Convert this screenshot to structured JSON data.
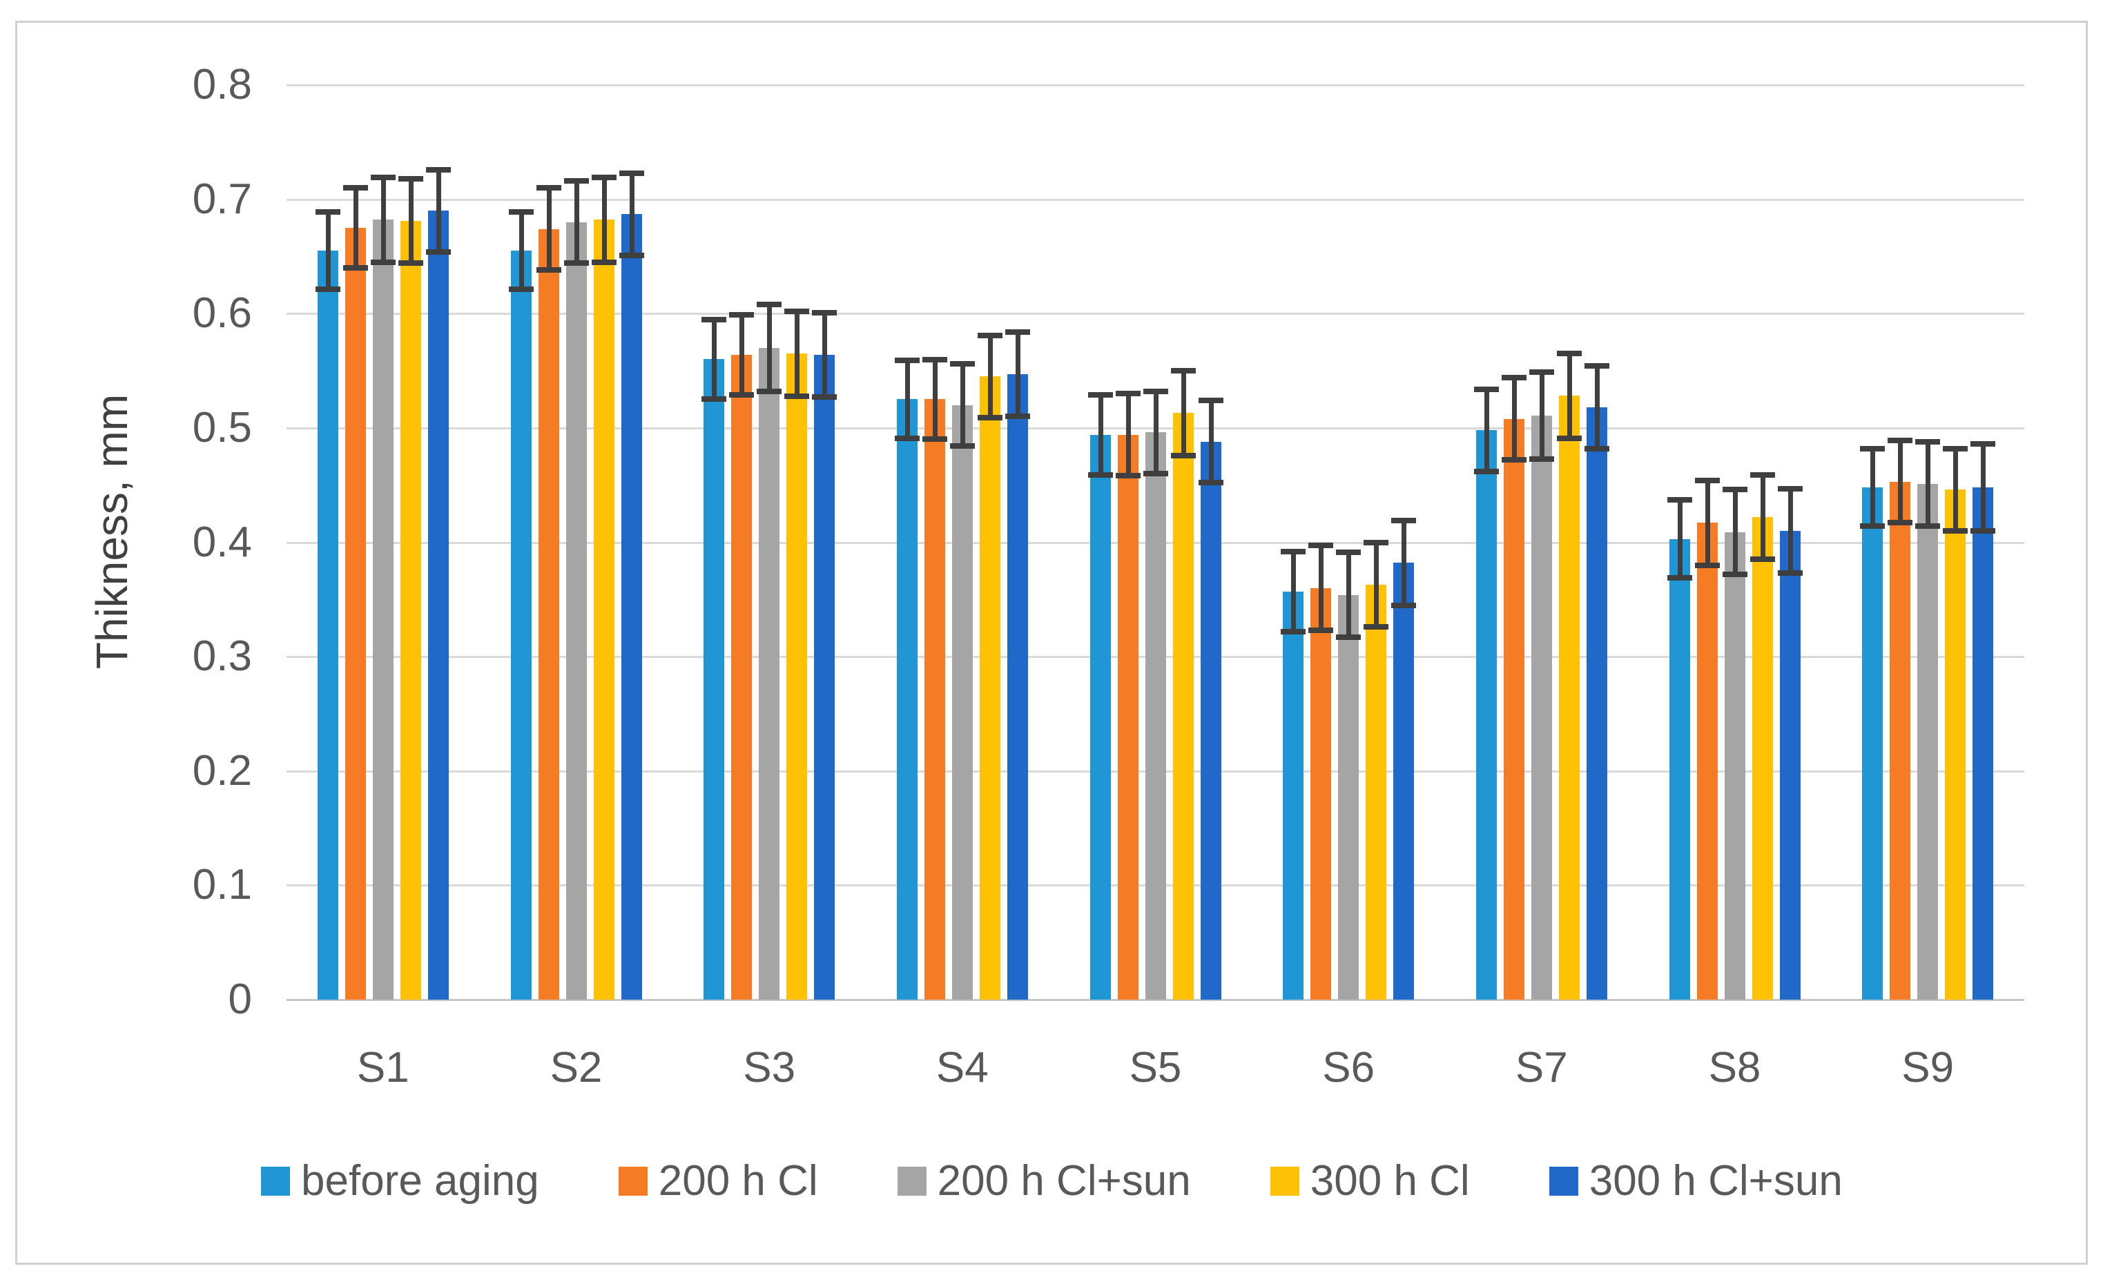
{
  "figure": {
    "background": "#FFFFFF",
    "border_color": "#D0D0D0"
  },
  "chart_data": {
    "type": "bar",
    "title": "",
    "xlabel": "",
    "ylabel": "Thikness, mm",
    "ylim": [
      0,
      0.8
    ],
    "ytick_step": 0.1,
    "ytick_labels": [
      "0",
      "0.1",
      "0.2",
      "0.3",
      "0.4",
      "0.5",
      "0.6",
      "0.7",
      "0.8"
    ],
    "grid": true,
    "gridline_color": "#D9D9D9",
    "axis_line_color": "#C6C6C6",
    "error_bar_color": "#3F3F3F",
    "text_color": "#595959",
    "legend_position": "bottom",
    "categories": [
      "S1",
      "S2",
      "S3",
      "S4",
      "S5",
      "S6",
      "S7",
      "S8",
      "S9"
    ],
    "series": [
      {
        "name": "before aging",
        "color": "#2196D4",
        "values": [
          0.655,
          0.655,
          0.56,
          0.525,
          0.494,
          0.357,
          0.498,
          0.403,
          0.448
        ],
        "errors": [
          0.034,
          0.034,
          0.035,
          0.034,
          0.035,
          0.035,
          0.036,
          0.034,
          0.034
        ]
      },
      {
        "name": "200 h Cl",
        "color": "#F57B25",
        "values": [
          0.675,
          0.674,
          0.564,
          0.525,
          0.494,
          0.36,
          0.508,
          0.417,
          0.453
        ],
        "errors": [
          0.035,
          0.036,
          0.035,
          0.035,
          0.036,
          0.037,
          0.036,
          0.037,
          0.036
        ]
      },
      {
        "name": "200 h Cl+sun",
        "color": "#A5A5A5",
        "values": [
          0.682,
          0.68,
          0.57,
          0.52,
          0.496,
          0.354,
          0.511,
          0.409,
          0.451
        ],
        "errors": [
          0.037,
          0.036,
          0.038,
          0.036,
          0.036,
          0.037,
          0.038,
          0.037,
          0.037
        ]
      },
      {
        "name": "300 h Cl",
        "color": "#FFC103",
        "values": [
          0.681,
          0.682,
          0.565,
          0.545,
          0.513,
          0.363,
          0.528,
          0.422,
          0.446
        ],
        "errors": [
          0.037,
          0.037,
          0.037,
          0.036,
          0.037,
          0.037,
          0.037,
          0.037,
          0.036
        ]
      },
      {
        "name": "300 h Cl+sun",
        "color": "#2069C8",
        "values": [
          0.69,
          0.687,
          0.564,
          0.547,
          0.488,
          0.382,
          0.518,
          0.41,
          0.448
        ],
        "errors": [
          0.036,
          0.036,
          0.037,
          0.037,
          0.036,
          0.037,
          0.036,
          0.037,
          0.038
        ]
      }
    ]
  }
}
